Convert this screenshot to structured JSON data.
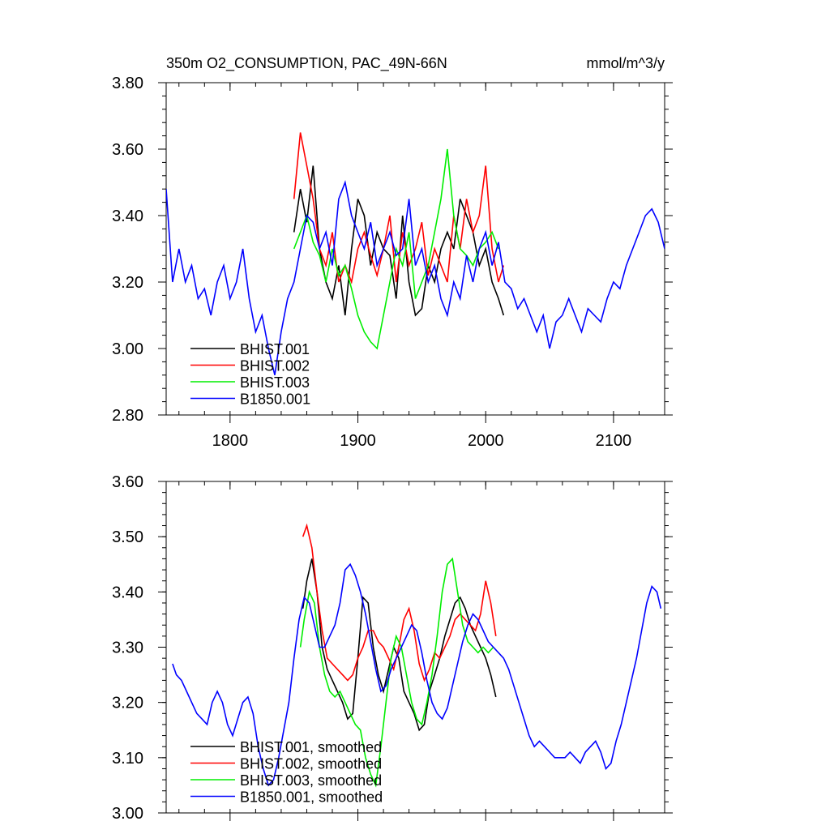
{
  "chart_data": [
    {
      "type": "line",
      "title": "350m O2_CONSUMPTION, PAC_49N-66N",
      "units": "mmol/m^3/y",
      "xlim": [
        1750,
        2140
      ],
      "ylim": [
        2.8,
        3.8
      ],
      "x_ticks": [
        1800,
        1900,
        2000,
        2100
      ],
      "x_tick_labels": [
        "1800",
        "1900",
        "2000",
        "2100"
      ],
      "y_ticks": [
        2.8,
        3.0,
        3.2,
        3.4,
        3.6,
        3.8
      ],
      "y_tick_labels": [
        "2.80",
        "3.00",
        "3.20",
        "3.40",
        "3.60",
        "3.80"
      ],
      "grid": false,
      "legend_position": "bottom-left",
      "series": [
        {
          "name": "BHIST.001",
          "color": "#000000",
          "x": [
            1850,
            1855,
            1860,
            1865,
            1870,
            1875,
            1880,
            1885,
            1890,
            1895,
            1900,
            1905,
            1910,
            1915,
            1920,
            1925,
            1930,
            1935,
            1940,
            1945,
            1950,
            1955,
            1960,
            1965,
            1970,
            1975,
            1980,
            1985,
            1990,
            1995,
            2000,
            2005,
            2010,
            2014
          ],
          "y": [
            3.35,
            3.48,
            3.38,
            3.55,
            3.3,
            3.2,
            3.15,
            3.25,
            3.1,
            3.3,
            3.45,
            3.4,
            3.25,
            3.35,
            3.3,
            3.28,
            3.15,
            3.4,
            3.2,
            3.1,
            3.12,
            3.25,
            3.2,
            3.3,
            3.35,
            3.3,
            3.45,
            3.4,
            3.35,
            3.25,
            3.3,
            3.2,
            3.15,
            3.1
          ]
        },
        {
          "name": "BHIST.002",
          "color": "#ff0000",
          "x": [
            1850,
            1855,
            1860,
            1865,
            1870,
            1875,
            1880,
            1885,
            1890,
            1895,
            1900,
            1905,
            1910,
            1915,
            1920,
            1925,
            1930,
            1935,
            1940,
            1945,
            1950,
            1955,
            1960,
            1965,
            1970,
            1975,
            1980,
            1985,
            1990,
            1995,
            2000,
            2005,
            2010,
            2014
          ],
          "y": [
            3.45,
            3.65,
            3.55,
            3.45,
            3.3,
            3.25,
            3.35,
            3.2,
            3.25,
            3.2,
            3.3,
            3.35,
            3.28,
            3.22,
            3.3,
            3.4,
            3.2,
            3.35,
            3.25,
            3.3,
            3.38,
            3.22,
            3.3,
            3.25,
            3.2,
            3.4,
            3.3,
            3.45,
            3.35,
            3.4,
            3.55,
            3.3,
            3.2,
            3.25
          ]
        },
        {
          "name": "BHIST.003",
          "color": "#00ee00",
          "x": [
            1850,
            1855,
            1860,
            1865,
            1870,
            1875,
            1880,
            1885,
            1890,
            1895,
            1900,
            1905,
            1910,
            1915,
            1920,
            1925,
            1930,
            1935,
            1940,
            1945,
            1950,
            1955,
            1960,
            1965,
            1970,
            1975,
            1980,
            1985,
            1990,
            1995,
            2000,
            2005,
            2010
          ],
          "y": [
            3.3,
            3.35,
            3.4,
            3.32,
            3.28,
            3.2,
            3.3,
            3.22,
            3.25,
            3.18,
            3.1,
            3.05,
            3.02,
            3.0,
            3.1,
            3.2,
            3.3,
            3.25,
            3.35,
            3.15,
            3.2,
            3.25,
            3.35,
            3.45,
            3.6,
            3.4,
            3.3,
            3.28,
            3.25,
            3.3,
            3.32,
            3.35,
            3.3
          ]
        },
        {
          "name": "B1850.001",
          "color": "#0000ff",
          "x": [
            1750,
            1755,
            1760,
            1765,
            1770,
            1775,
            1780,
            1785,
            1790,
            1795,
            1800,
            1805,
            1810,
            1815,
            1820,
            1825,
            1830,
            1835,
            1840,
            1845,
            1850,
            1855,
            1860,
            1865,
            1870,
            1875,
            1880,
            1885,
            1890,
            1895,
            1900,
            1905,
            1910,
            1915,
            1920,
            1925,
            1930,
            1935,
            1940,
            1945,
            1950,
            1955,
            1960,
            1965,
            1970,
            1975,
            1980,
            1985,
            1990,
            1995,
            2000,
            2005,
            2010,
            2015,
            2020,
            2025,
            2030,
            2035,
            2040,
            2045,
            2050,
            2055,
            2060,
            2065,
            2070,
            2075,
            2080,
            2085,
            2090,
            2095,
            2100,
            2105,
            2110,
            2115,
            2120,
            2125,
            2130,
            2135,
            2140
          ],
          "y": [
            3.48,
            3.2,
            3.3,
            3.2,
            3.25,
            3.15,
            3.18,
            3.1,
            3.2,
            3.25,
            3.15,
            3.2,
            3.3,
            3.15,
            3.05,
            3.1,
            3.0,
            2.92,
            3.05,
            3.15,
            3.2,
            3.3,
            3.4,
            3.38,
            3.3,
            3.35,
            3.25,
            3.45,
            3.5,
            3.4,
            3.35,
            3.3,
            3.38,
            3.25,
            3.3,
            3.35,
            3.28,
            3.3,
            3.45,
            3.25,
            3.3,
            3.2,
            3.25,
            3.15,
            3.1,
            3.2,
            3.15,
            3.28,
            3.2,
            3.3,
            3.35,
            3.25,
            3.32,
            3.2,
            3.18,
            3.12,
            3.15,
            3.1,
            3.05,
            3.1,
            3.0,
            3.08,
            3.1,
            3.15,
            3.1,
            3.05,
            3.12,
            3.1,
            3.08,
            3.15,
            3.2,
            3.18,
            3.25,
            3.3,
            3.35,
            3.4,
            3.42,
            3.38,
            3.3
          ]
        }
      ]
    },
    {
      "type": "line",
      "xlim": [
        1750,
        2140
      ],
      "ylim": [
        3.0,
        3.6
      ],
      "x_ticks": [
        1800,
        1900,
        2000,
        2100
      ],
      "y_ticks": [
        3.0,
        3.1,
        3.2,
        3.3,
        3.4,
        3.5,
        3.6
      ],
      "y_tick_labels": [
        "3.00",
        "3.10",
        "3.20",
        "3.30",
        "3.40",
        "3.50",
        "3.60"
      ],
      "grid": false,
      "legend_position": "bottom-left",
      "series": [
        {
          "name": "BHIST.001, smoothed",
          "color": "#000000",
          "x": [
            1857,
            1860,
            1864,
            1868,
            1872,
            1876,
            1880,
            1884,
            1888,
            1892,
            1896,
            1900,
            1904,
            1908,
            1912,
            1916,
            1920,
            1924,
            1928,
            1932,
            1936,
            1940,
            1944,
            1948,
            1952,
            1956,
            1960,
            1964,
            1968,
            1972,
            1976,
            1980,
            1984,
            1988,
            1992,
            1996,
            2000,
            2004,
            2008
          ],
          "y": [
            3.37,
            3.42,
            3.46,
            3.4,
            3.3,
            3.26,
            3.24,
            3.22,
            3.2,
            3.17,
            3.18,
            3.28,
            3.39,
            3.38,
            3.3,
            3.25,
            3.22,
            3.26,
            3.3,
            3.28,
            3.22,
            3.2,
            3.18,
            3.15,
            3.16,
            3.22,
            3.25,
            3.28,
            3.32,
            3.35,
            3.38,
            3.39,
            3.37,
            3.34,
            3.32,
            3.3,
            3.28,
            3.25,
            3.21
          ]
        },
        {
          "name": "BHIST.002, smoothed",
          "color": "#ff0000",
          "x": [
            1857,
            1860,
            1864,
            1868,
            1872,
            1876,
            1880,
            1884,
            1888,
            1892,
            1896,
            1900,
            1904,
            1908,
            1912,
            1916,
            1920,
            1924,
            1928,
            1932,
            1936,
            1940,
            1944,
            1948,
            1952,
            1956,
            1960,
            1964,
            1968,
            1972,
            1976,
            1980,
            1984,
            1988,
            1992,
            1996,
            2000,
            2004,
            2008
          ],
          "y": [
            3.5,
            3.52,
            3.48,
            3.4,
            3.33,
            3.28,
            3.27,
            3.26,
            3.25,
            3.24,
            3.25,
            3.28,
            3.3,
            3.33,
            3.33,
            3.31,
            3.3,
            3.28,
            3.26,
            3.3,
            3.35,
            3.37,
            3.33,
            3.27,
            3.24,
            3.26,
            3.29,
            3.28,
            3.3,
            3.32,
            3.35,
            3.36,
            3.35,
            3.34,
            3.33,
            3.36,
            3.42,
            3.38,
            3.32
          ]
        },
        {
          "name": "BHIST.003, smoothed",
          "color": "#00ee00",
          "x": [
            1855,
            1858,
            1862,
            1866,
            1870,
            1874,
            1878,
            1882,
            1886,
            1890,
            1894,
            1898,
            1902,
            1906,
            1910,
            1914,
            1918,
            1922,
            1926,
            1930,
            1934,
            1938,
            1942,
            1946,
            1950,
            1954,
            1958,
            1962,
            1966,
            1970,
            1974,
            1978,
            1982,
            1986,
            1990,
            1994,
            1998,
            2002,
            2006
          ],
          "y": [
            3.3,
            3.35,
            3.4,
            3.38,
            3.3,
            3.25,
            3.22,
            3.21,
            3.22,
            3.2,
            3.18,
            3.16,
            3.15,
            3.1,
            3.07,
            3.05,
            3.12,
            3.2,
            3.28,
            3.32,
            3.3,
            3.25,
            3.2,
            3.17,
            3.16,
            3.2,
            3.25,
            3.32,
            3.4,
            3.45,
            3.46,
            3.4,
            3.34,
            3.31,
            3.3,
            3.29,
            3.3,
            3.29,
            3.3
          ]
        },
        {
          "name": "B1850.001, smoothed",
          "color": "#0000ff",
          "x": [
            1755,
            1758,
            1762,
            1766,
            1770,
            1774,
            1778,
            1782,
            1786,
            1790,
            1794,
            1798,
            1802,
            1806,
            1810,
            1814,
            1818,
            1822,
            1826,
            1830,
            1834,
            1838,
            1842,
            1846,
            1850,
            1854,
            1858,
            1862,
            1866,
            1870,
            1874,
            1878,
            1882,
            1886,
            1890,
            1894,
            1898,
            1902,
            1906,
            1910,
            1914,
            1918,
            1922,
            1926,
            1930,
            1934,
            1938,
            1942,
            1946,
            1950,
            1954,
            1958,
            1962,
            1966,
            1970,
            1974,
            1978,
            1982,
            1986,
            1990,
            1994,
            1998,
            2002,
            2006,
            2010,
            2014,
            2018,
            2022,
            2026,
            2030,
            2034,
            2038,
            2042,
            2046,
            2050,
            2054,
            2058,
            2062,
            2066,
            2070,
            2074,
            2078,
            2082,
            2086,
            2090,
            2094,
            2098,
            2102,
            2106,
            2110,
            2114,
            2118,
            2122,
            2126,
            2130,
            2134,
            2137
          ],
          "y": [
            3.27,
            3.25,
            3.24,
            3.22,
            3.2,
            3.18,
            3.17,
            3.16,
            3.2,
            3.22,
            3.2,
            3.16,
            3.14,
            3.17,
            3.2,
            3.21,
            3.18,
            3.12,
            3.08,
            3.05,
            3.06,
            3.1,
            3.15,
            3.2,
            3.28,
            3.35,
            3.39,
            3.38,
            3.34,
            3.3,
            3.3,
            3.32,
            3.34,
            3.38,
            3.44,
            3.45,
            3.43,
            3.4,
            3.36,
            3.31,
            3.26,
            3.22,
            3.23,
            3.26,
            3.28,
            3.3,
            3.32,
            3.34,
            3.33,
            3.29,
            3.24,
            3.2,
            3.18,
            3.17,
            3.19,
            3.23,
            3.27,
            3.31,
            3.34,
            3.36,
            3.35,
            3.33,
            3.31,
            3.3,
            3.29,
            3.28,
            3.26,
            3.23,
            3.2,
            3.17,
            3.14,
            3.12,
            3.13,
            3.12,
            3.11,
            3.1,
            3.1,
            3.1,
            3.11,
            3.1,
            3.09,
            3.11,
            3.12,
            3.13,
            3.11,
            3.08,
            3.09,
            3.13,
            3.16,
            3.2,
            3.24,
            3.28,
            3.33,
            3.38,
            3.41,
            3.4,
            3.37
          ]
        }
      ]
    }
  ]
}
